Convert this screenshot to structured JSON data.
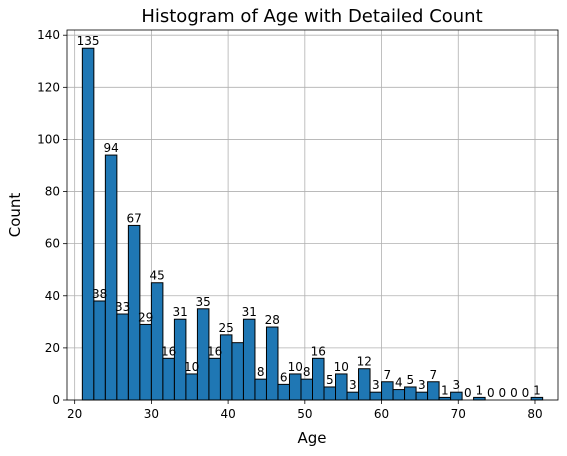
{
  "chart_data": {
    "type": "bar",
    "title": "Histogram of Age with Detailed Count",
    "xlabel": "Age",
    "ylabel": "Count",
    "xlim": [
      19,
      83
    ],
    "ylim": [
      0,
      142
    ],
    "xticks": [
      20,
      30,
      40,
      50,
      60,
      70,
      80
    ],
    "yticks": [
      0,
      20,
      40,
      60,
      80,
      100,
      120,
      140
    ],
    "grid": true,
    "bar_color": "#1f77b4",
    "bin_start": 21,
    "bin_width": 1.5,
    "values": [
      135,
      38,
      94,
      33,
      67,
      29,
      45,
      16,
      31,
      10,
      35,
      16,
      25,
      22,
      31,
      8,
      28,
      6,
      10,
      8,
      16,
      5,
      10,
      3,
      12,
      3,
      7,
      4,
      5,
      3,
      7,
      1,
      3,
      0,
      1,
      0,
      0,
      0,
      0,
      1
    ],
    "labeled_values": [
      135,
      38,
      94,
      33,
      67,
      29,
      45,
      16,
      31,
      10,
      35,
      16,
      25,
      null,
      31,
      8,
      28,
      6,
      10,
      8,
      16,
      5,
      10,
      3,
      12,
      3,
      7,
      4,
      5,
      3,
      7,
      1,
      3,
      0,
      1,
      0,
      0,
      0,
      0,
      1
    ]
  }
}
